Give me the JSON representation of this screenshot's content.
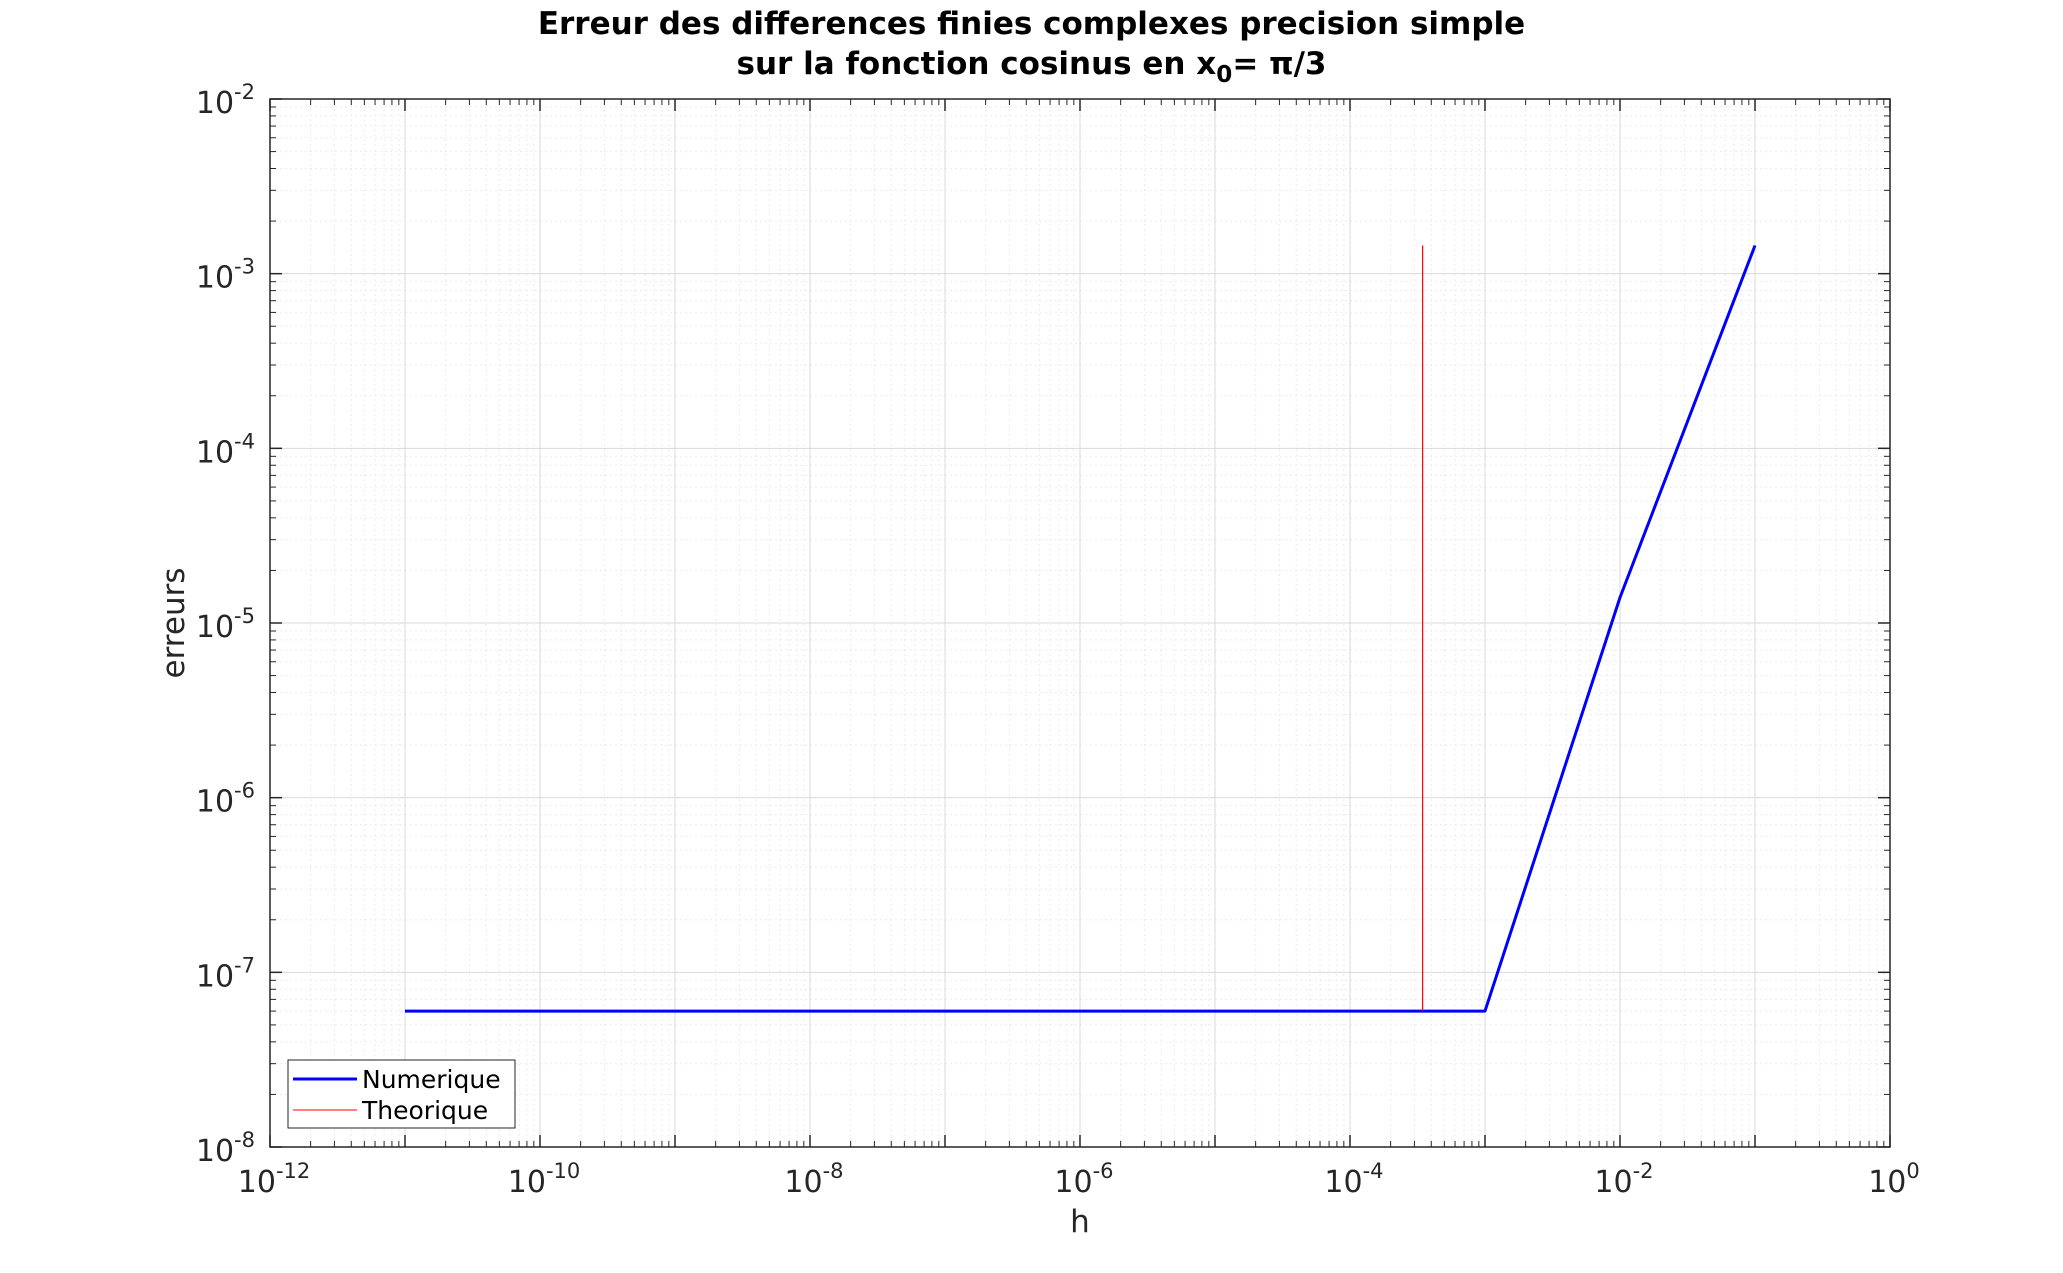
{
  "chart_data": {
    "type": "line",
    "title_line1": "Erreur des differences finies complexes precision simple",
    "title_line2_prefix": "sur la fonction cosinus en x",
    "title_line2_subscript": "0",
    "title_line2_suffix": "= π/3",
    "xlabel": "h",
    "ylabel": "erreurs",
    "xscale": "log",
    "yscale": "log",
    "xlim": [
      1e-12,
      1
    ],
    "ylim": [
      1e-08,
      0.01
    ],
    "xticks": [
      {
        "base": "10",
        "exp": "-12"
      },
      {
        "base": "10",
        "exp": "-10"
      },
      {
        "base": "10",
        "exp": "-8"
      },
      {
        "base": "10",
        "exp": "-6"
      },
      {
        "base": "10",
        "exp": "-4"
      },
      {
        "base": "10",
        "exp": "-2"
      },
      {
        "base": "10",
        "exp": "0"
      }
    ],
    "yticks": [
      {
        "base": "10",
        "exp": "-8"
      },
      {
        "base": "10",
        "exp": "-7"
      },
      {
        "base": "10",
        "exp": "-6"
      },
      {
        "base": "10",
        "exp": "-5"
      },
      {
        "base": "10",
        "exp": "-4"
      },
      {
        "base": "10",
        "exp": "-3"
      },
      {
        "base": "10",
        "exp": "-2"
      }
    ],
    "grid": true,
    "minor_grid": true,
    "legend_position": "bottom-left",
    "series": [
      {
        "name": "Numerique",
        "color": "#0000ff",
        "x": [
          1e-11,
          1e-10,
          1e-09,
          1e-08,
          1e-07,
          1e-06,
          1e-05,
          0.0001,
          0.001,
          0.01,
          0.1
        ],
        "y": [
          6e-08,
          6e-08,
          6e-08,
          6e-08,
          6e-08,
          6e-08,
          6e-08,
          6e-08,
          6e-08,
          1.4e-05,
          0.00145
        ]
      },
      {
        "name": "Theorique",
        "color": "#ff0000",
        "x": [
          0.000345,
          0.000345
        ],
        "y": [
          6e-08,
          0.00145
        ]
      }
    ]
  }
}
